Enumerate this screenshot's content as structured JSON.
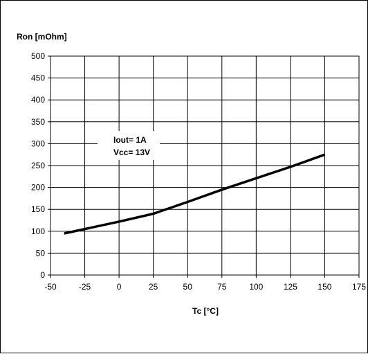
{
  "chart_data": {
    "type": "line",
    "title": "",
    "ylabel": "Ron [mOhm]",
    "xlabel": "Tc [°C]",
    "xlim": [
      -50,
      175
    ],
    "ylim": [
      0,
      500
    ],
    "x_ticks": [
      -50,
      -25,
      0,
      25,
      50,
      75,
      100,
      125,
      150,
      175
    ],
    "y_ticks": [
      0,
      50,
      100,
      150,
      200,
      250,
      300,
      350,
      400,
      450,
      500
    ],
    "grid": true,
    "legend": "none",
    "annotations": [
      "Iout= 1A",
      "Vcc= 13V"
    ],
    "series": [
      {
        "color": "#000000",
        "x": [
          -40,
          0,
          25,
          50,
          75,
          100,
          125,
          150
        ],
        "y": [
          95,
          122,
          140,
          167,
          195,
          221,
          247,
          275
        ]
      }
    ]
  }
}
